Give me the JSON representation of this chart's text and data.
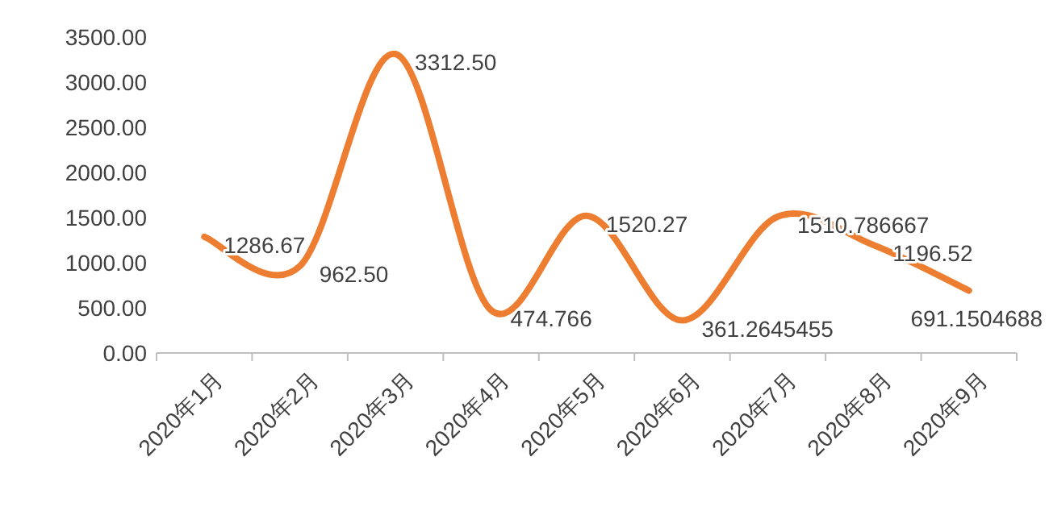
{
  "chart_data": {
    "type": "line",
    "categories": [
      "2020年1月",
      "2020年2月",
      "2020年3月",
      "2020年4月",
      "2020年5月",
      "2020年6月",
      "2020年7月",
      "2020年8月",
      "2020年9月"
    ],
    "series": [
      {
        "color": "#ed7d31",
        "values": [
          1286.67,
          962.5,
          3312.5,
          474.766,
          1520.27,
          361.2645455,
          1510.786667,
          1196.52,
          691.1504688
        ],
        "value_labels": [
          "1286.67",
          "962.50",
          "3312.50",
          "474.766",
          "1520.27",
          "361.2645455",
          "1510.786667",
          "1196.52",
          "691.1504688"
        ]
      }
    ],
    "ylim": [
      0,
      3500
    ],
    "yticks": [
      {
        "value": 0,
        "label": "0.00"
      },
      {
        "value": 500,
        "label": "500.00"
      },
      {
        "value": 1000,
        "label": "1000.00"
      },
      {
        "value": 1500,
        "label": "1500.00"
      },
      {
        "value": 2000,
        "label": "2000.00"
      },
      {
        "value": 2500,
        "label": "2500.00"
      },
      {
        "value": 3000,
        "label": "3000.00"
      },
      {
        "value": 3500,
        "label": "3500.00"
      }
    ],
    "grid": false,
    "marker": "none",
    "line_style": "solid"
  }
}
